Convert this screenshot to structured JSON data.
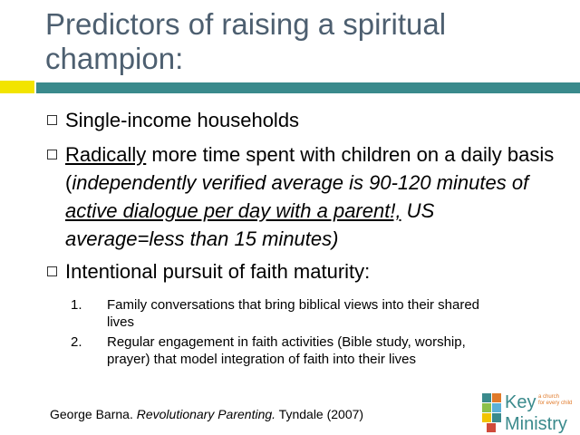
{
  "header": {
    "title": "Predictors of raising a spiritual champion:"
  },
  "bullets": [
    {
      "segments": [
        "Single-income households"
      ]
    },
    {
      "segments": [
        "Radically",
        " more time spent with children on a daily basis (",
        "independently verified average is 90-120 minutes of ",
        "active dialogue per day with a parent!,",
        " US average=less than 15 minutes)"
      ]
    },
    {
      "segments": [
        "Intentional pursuit of faith maturity:"
      ],
      "subitems": [
        {
          "number": "1.",
          "text": "Family conversations that bring biblical views into their shared lives"
        },
        {
          "number": "2.",
          "text": "Regular engagement in faith activities (Bible study, worship, prayer) that model integration of faith into their lives"
        }
      ]
    }
  ],
  "citation": {
    "author": "George Barna. ",
    "work": "Revolutionary Parenting.",
    "publisher": " Tyndale (2007)"
  },
  "logo": {
    "name1": "Key",
    "name2": "Ministry",
    "tagline1": "a church",
    "tagline2": "for every child"
  }
}
